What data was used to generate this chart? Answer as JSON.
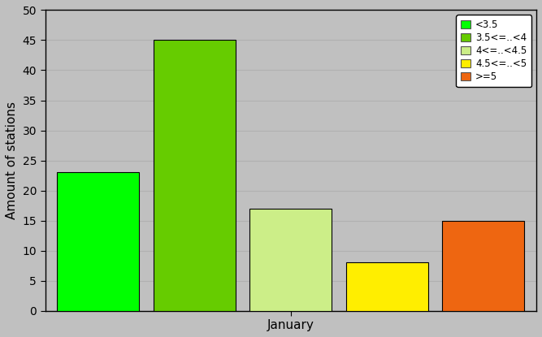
{
  "bars": [
    {
      "label": "<3.5",
      "value": 23,
      "color": "#00ff00"
    },
    {
      "label": "3.5<=..<4",
      "value": 45,
      "color": "#66cc00"
    },
    {
      "label": "4<=..<4.5",
      "value": 17,
      "color": "#ccee88"
    },
    {
      "label": "4.5<=..<5",
      "value": 8,
      "color": "#ffee00"
    },
    {
      "label": ">=5",
      "value": 15,
      "color": "#ee6611"
    }
  ],
  "ylabel": "Amount of stations",
  "xlabel": "January",
  "ylim": [
    0,
    50
  ],
  "yticks": [
    0,
    5,
    10,
    15,
    20,
    25,
    30,
    35,
    40,
    45,
    50
  ],
  "background_color": "#c0c0c0",
  "plot_bg_color": "#c0c0c0",
  "grid_color": "#b0b0b0",
  "bar_edge_color": "#000000"
}
